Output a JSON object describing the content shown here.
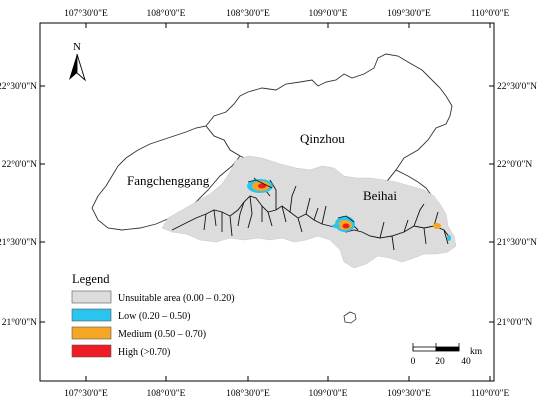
{
  "map": {
    "top_ticks": [
      "107°30'0\"E",
      "108°0'0\"E",
      "108°30'0\"E",
      "109°0'0\"E",
      "109°30'0\"E",
      "110°0'0\"E"
    ],
    "bottom_ticks": [
      "107°30'0\"E",
      "108°0'0\"E",
      "108°30'0\"E",
      "109°0'0\"E",
      "109°30'0\"E",
      "110°0'0\"E"
    ],
    "left_ticks": [
      "22°30'0\"N",
      "22°0'0\"N",
      "21°30'0\"N",
      "21°0'0\"N"
    ],
    "right_ticks": [
      "22°30'0\"N",
      "22°0'0\"N",
      "21°30'0\"N",
      "21°0'0\"N"
    ],
    "north_label": "N",
    "regions": {
      "qinzhou": "Qinzhou",
      "fangchenggang": "Fangchenggang",
      "beihai": "Beihai"
    },
    "legend": {
      "title": "Legend",
      "items": [
        {
          "label": "Unsuitable area (0.00 – 0.20)",
          "color": "#dcdcdc"
        },
        {
          "label": "Low (0.20 – 0.50)",
          "color": "#29c5ef"
        },
        {
          "label": "Medium (0.50 – 0.70)",
          "color": "#f5a623"
        },
        {
          "label": "High (>0.70)",
          "color": "#ee1c24"
        }
      ]
    },
    "scalebar": {
      "unit": "km",
      "labels": [
        "0",
        "20",
        "40"
      ]
    }
  }
}
